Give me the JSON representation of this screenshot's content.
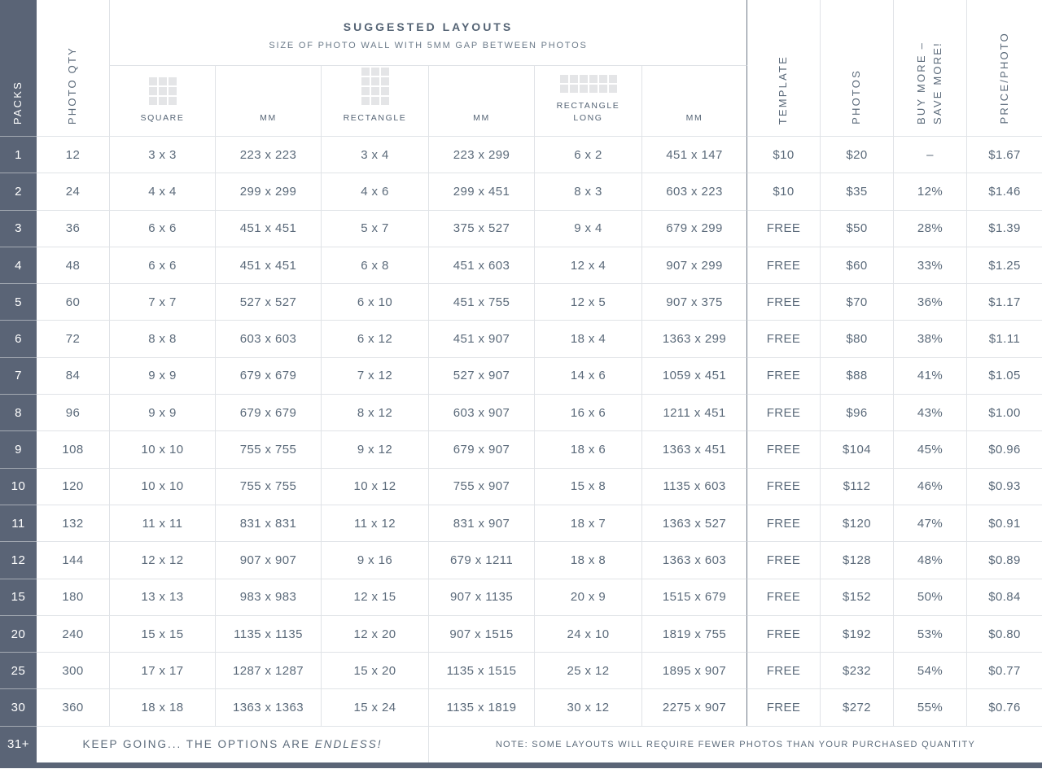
{
  "chart_data": {
    "type": "table",
    "title": "SUGGESTED LAYOUTS",
    "subtitle": "SIZE OF PHOTO WALL WITH 5MM GAP BETWEEN PHOTOS",
    "packs_header": "PACKS",
    "photo_qty_header": "PHOTO QTY",
    "layout_columns": [
      {
        "label": "SQUARE",
        "icon": "grid-3x3-icon"
      },
      {
        "label": "MM"
      },
      {
        "label": "RECTANGLE",
        "icon": "grid-3x4-icon"
      },
      {
        "label": "MM"
      },
      {
        "label": "RECTANGLE LONG",
        "icon": "grid-6x2-icon"
      },
      {
        "label": "MM"
      }
    ],
    "right_columns": [
      {
        "label": "TEMPLATE",
        "label2": ""
      },
      {
        "label": "PHOTOS",
        "label2": ""
      },
      {
        "label": "BUY MORE –",
        "label2": "SAVE MORE!"
      },
      {
        "label": "PRICE/PHOTO",
        "label2": ""
      }
    ],
    "rows": [
      {
        "pack": "1",
        "qty": "12",
        "square": "3 x 3",
        "square_mm": "223 x 223",
        "rectangle": "3 x 4",
        "rectangle_mm": "223 x 299",
        "rectangle_long": "6 x 2",
        "rectangle_long_mm": "451 x 147",
        "template": "$10",
        "photos": "$20",
        "save": "–",
        "price": "$1.67"
      },
      {
        "pack": "2",
        "qty": "24",
        "square": "4 x 4",
        "square_mm": "299 x 299",
        "rectangle": "4 x 6",
        "rectangle_mm": "299 x 451",
        "rectangle_long": "8 x 3",
        "rectangle_long_mm": "603 x 223",
        "template": "$10",
        "photos": "$35",
        "save": "12%",
        "price": "$1.46"
      },
      {
        "pack": "3",
        "qty": "36",
        "square": "6 x 6",
        "square_mm": "451 x 451",
        "rectangle": "5 x 7",
        "rectangle_mm": "375 x 527",
        "rectangle_long": "9 x 4",
        "rectangle_long_mm": "679 x 299",
        "template": "FREE",
        "photos": "$50",
        "save": "28%",
        "price": "$1.39"
      },
      {
        "pack": "4",
        "qty": "48",
        "square": "6 x 6",
        "square_mm": "451 x 451",
        "rectangle": "6 x 8",
        "rectangle_mm": "451 x 603",
        "rectangle_long": "12 x 4",
        "rectangle_long_mm": "907 x 299",
        "template": "FREE",
        "photos": "$60",
        "save": "33%",
        "price": "$1.25"
      },
      {
        "pack": "5",
        "qty": "60",
        "square": "7 x 7",
        "square_mm": "527 x 527",
        "rectangle": "6 x 10",
        "rectangle_mm": "451 x 755",
        "rectangle_long": "12 x 5",
        "rectangle_long_mm": "907 x 375",
        "template": "FREE",
        "photos": "$70",
        "save": "36%",
        "price": "$1.17"
      },
      {
        "pack": "6",
        "qty": "72",
        "square": "8 x 8",
        "square_mm": "603 x 603",
        "rectangle": "6 x 12",
        "rectangle_mm": "451 x 907",
        "rectangle_long": "18 x 4",
        "rectangle_long_mm": "1363 x 299",
        "template": "FREE",
        "photos": "$80",
        "save": "38%",
        "price": "$1.11"
      },
      {
        "pack": "7",
        "qty": "84",
        "square": "9 x 9",
        "square_mm": "679 x 679",
        "rectangle": "7 x 12",
        "rectangle_mm": "527 x 907",
        "rectangle_long": "14 x 6",
        "rectangle_long_mm": "1059 x 451",
        "template": "FREE",
        "photos": "$88",
        "save": "41%",
        "price": "$1.05"
      },
      {
        "pack": "8",
        "qty": "96",
        "square": "9 x 9",
        "square_mm": "679 x 679",
        "rectangle": "8 x 12",
        "rectangle_mm": "603 x 907",
        "rectangle_long": "16 x 6",
        "rectangle_long_mm": "1211 x 451",
        "template": "FREE",
        "photos": "$96",
        "save": "43%",
        "price": "$1.00"
      },
      {
        "pack": "9",
        "qty": "108",
        "square": "10 x 10",
        "square_mm": "755 x 755",
        "rectangle": "9 x 12",
        "rectangle_mm": "679 x 907",
        "rectangle_long": "18 x 6",
        "rectangle_long_mm": "1363 x 451",
        "template": "FREE",
        "photos": "$104",
        "save": "45%",
        "price": "$0.96"
      },
      {
        "pack": "10",
        "qty": "120",
        "square": "10 x 10",
        "square_mm": "755 x 755",
        "rectangle": "10 x 12",
        "rectangle_mm": "755 x 907",
        "rectangle_long": "15 x 8",
        "rectangle_long_mm": "1135 x 603",
        "template": "FREE",
        "photos": "$112",
        "save": "46%",
        "price": "$0.93"
      },
      {
        "pack": "11",
        "qty": "132",
        "square": "11 x 11",
        "square_mm": "831 x 831",
        "rectangle": "11 x 12",
        "rectangle_mm": "831 x 907",
        "rectangle_long": "18 x 7",
        "rectangle_long_mm": "1363 x 527",
        "template": "FREE",
        "photos": "$120",
        "save": "47%",
        "price": "$0.91"
      },
      {
        "pack": "12",
        "qty": "144",
        "square": "12 x 12",
        "square_mm": "907 x 907",
        "rectangle": "9 x 16",
        "rectangle_mm": "679 x 1211",
        "rectangle_long": "18 x 8",
        "rectangle_long_mm": "1363 x 603",
        "template": "FREE",
        "photos": "$128",
        "save": "48%",
        "price": "$0.89"
      },
      {
        "pack": "15",
        "qty": "180",
        "square": "13 x 13",
        "square_mm": "983 x 983",
        "rectangle": "12 x 15",
        "rectangle_mm": "907 x 1135",
        "rectangle_long": "20 x 9",
        "rectangle_long_mm": "1515 x 679",
        "template": "FREE",
        "photos": "$152",
        "save": "50%",
        "price": "$0.84"
      },
      {
        "pack": "20",
        "qty": "240",
        "square": "15 x 15",
        "square_mm": "1135 x 1135",
        "rectangle": "12 x 20",
        "rectangle_mm": "907 x 1515",
        "rectangle_long": "24 x 10",
        "rectangle_long_mm": "1819 x 755",
        "template": "FREE",
        "photos": "$192",
        "save": "53%",
        "price": "$0.80"
      },
      {
        "pack": "25",
        "qty": "300",
        "square": "17 x 17",
        "square_mm": "1287 x 1287",
        "rectangle": "15 x 20",
        "rectangle_mm": "1135 x 1515",
        "rectangle_long": "25 x 12",
        "rectangle_long_mm": "1895 x 907",
        "template": "FREE",
        "photos": "$232",
        "save": "54%",
        "price": "$0.77"
      },
      {
        "pack": "30",
        "qty": "360",
        "square": "18 x 18",
        "square_mm": "1363 x 1363",
        "rectangle": "15 x 24",
        "rectangle_mm": "1135 x 1819",
        "rectangle_long": "30 x 12",
        "rectangle_long_mm": "2275 x 907",
        "template": "FREE",
        "photos": "$272",
        "save": "55%",
        "price": "$0.76"
      }
    ],
    "footer": {
      "pack": "31+",
      "keep_going": "KEEP GOING... THE OPTIONS ARE",
      "keep_going_em": "ENDLESS!",
      "note": "NOTE: SOME LAYOUTS WILL REQUIRE FEWER PHOTOS THAN YOUR PURCHASED QUANTITY"
    },
    "colors": {
      "slate_dark": "#5a6476",
      "text": "#5b6a7a",
      "grid_line": "#e0e3e7",
      "divider_dark": "#6e7887",
      "icon_fill": "#e4e5e7",
      "background": "#ffffff"
    }
  }
}
